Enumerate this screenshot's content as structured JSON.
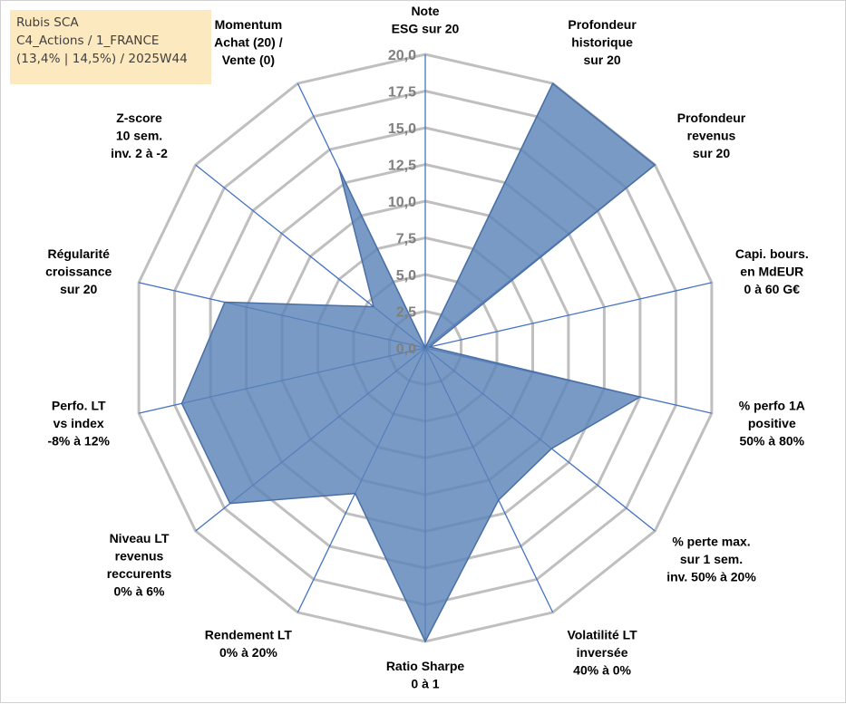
{
  "info_box": {
    "line1": "Rubis SCA",
    "line2": "C4_Actions / 1_FRANCE",
    "line3": "(13,4% | 14,5%) / 2025W44"
  },
  "chart_data": {
    "type": "radar",
    "r_range": [
      0,
      20
    ],
    "r_ticks": [
      "0,0",
      "2,5",
      "5,0",
      "7,5",
      "10,0",
      "12,5",
      "15,0",
      "17,5",
      "20,0"
    ],
    "grid": true,
    "categories": [
      [
        "Note",
        "ESG sur 20"
      ],
      [
        "Profondeur",
        "historique",
        "sur 20"
      ],
      [
        "Profondeur",
        "revenus",
        "sur 20"
      ],
      [
        "Capi. bours.",
        "en MdEUR",
        "0 à 60 G€"
      ],
      [
        "% perfo 1A",
        "positive",
        "50% à 80%"
      ],
      [
        "% perte max.",
        "sur 1 sem.",
        "inv. 50% à 20%"
      ],
      [
        "Volatilité LT",
        "inversée",
        "40% à 0%"
      ],
      [
        "Ratio Sharpe",
        "0 à 1"
      ],
      [
        "Rendement LT",
        "0% à 20%"
      ],
      [
        "Niveau LT",
        "revenus",
        "reccurents",
        "0% à 6%"
      ],
      [
        "Perfo. LT",
        "vs index",
        "-8% à 12%"
      ],
      [
        "Régularité",
        "croissance",
        "sur 20"
      ],
      [
        "Z-score",
        "10 sem.",
        "inv. 2 à -2"
      ],
      [
        "Momentum",
        "Achat (20) /",
        "Vente (0)"
      ]
    ],
    "series": [
      {
        "values": [
          0,
          20,
          20,
          0.3,
          15,
          11,
          11.5,
          20,
          11,
          17,
          17,
          14,
          4.5,
          13.5
        ],
        "fill": "#5b84b8",
        "fill_opacity": 0.82,
        "stroke": "#4a6fa5"
      }
    ],
    "colors": {
      "grid": "#bfbfbf",
      "spoke": "#4472c4",
      "tick_text": "#7f7f7f",
      "label_text": "#000000"
    }
  }
}
